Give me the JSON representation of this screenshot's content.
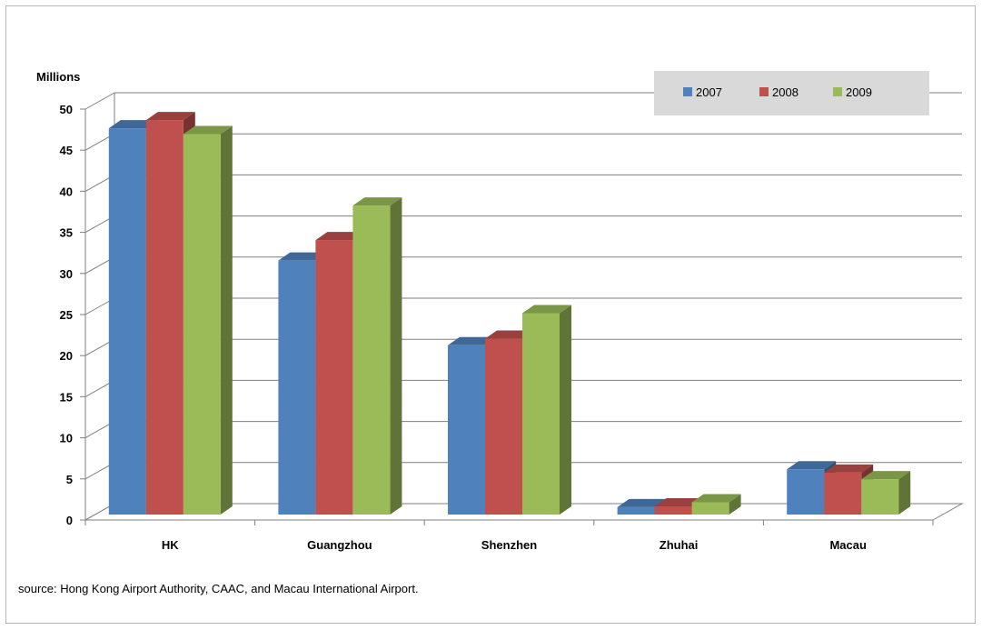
{
  "chart_data": {
    "type": "bar",
    "ylabel": "Millions",
    "ylim": [
      0,
      50
    ],
    "yticks": [
      0,
      5,
      10,
      15,
      20,
      25,
      30,
      35,
      40,
      45,
      50
    ],
    "categories": [
      "HK",
      "Guangzhou",
      "Shenzhen",
      "Zhuhai",
      "Macau"
    ],
    "series": [
      {
        "name": "2007",
        "color": "#4f81bd",
        "values": [
          47.0,
          30.9,
          20.6,
          0.9,
          5.5
        ]
      },
      {
        "name": "2008",
        "color": "#c0504d",
        "values": [
          48.0,
          33.4,
          21.4,
          1.0,
          5.1
        ]
      },
      {
        "name": "2009",
        "color": "#9bbb59",
        "values": [
          46.3,
          37.6,
          24.5,
          1.5,
          4.3
        ]
      }
    ],
    "grid": true,
    "legend_position": "top-right"
  },
  "source_text": "source: Hong Kong Airport Authority,  CAAC, and Macau International Airport."
}
